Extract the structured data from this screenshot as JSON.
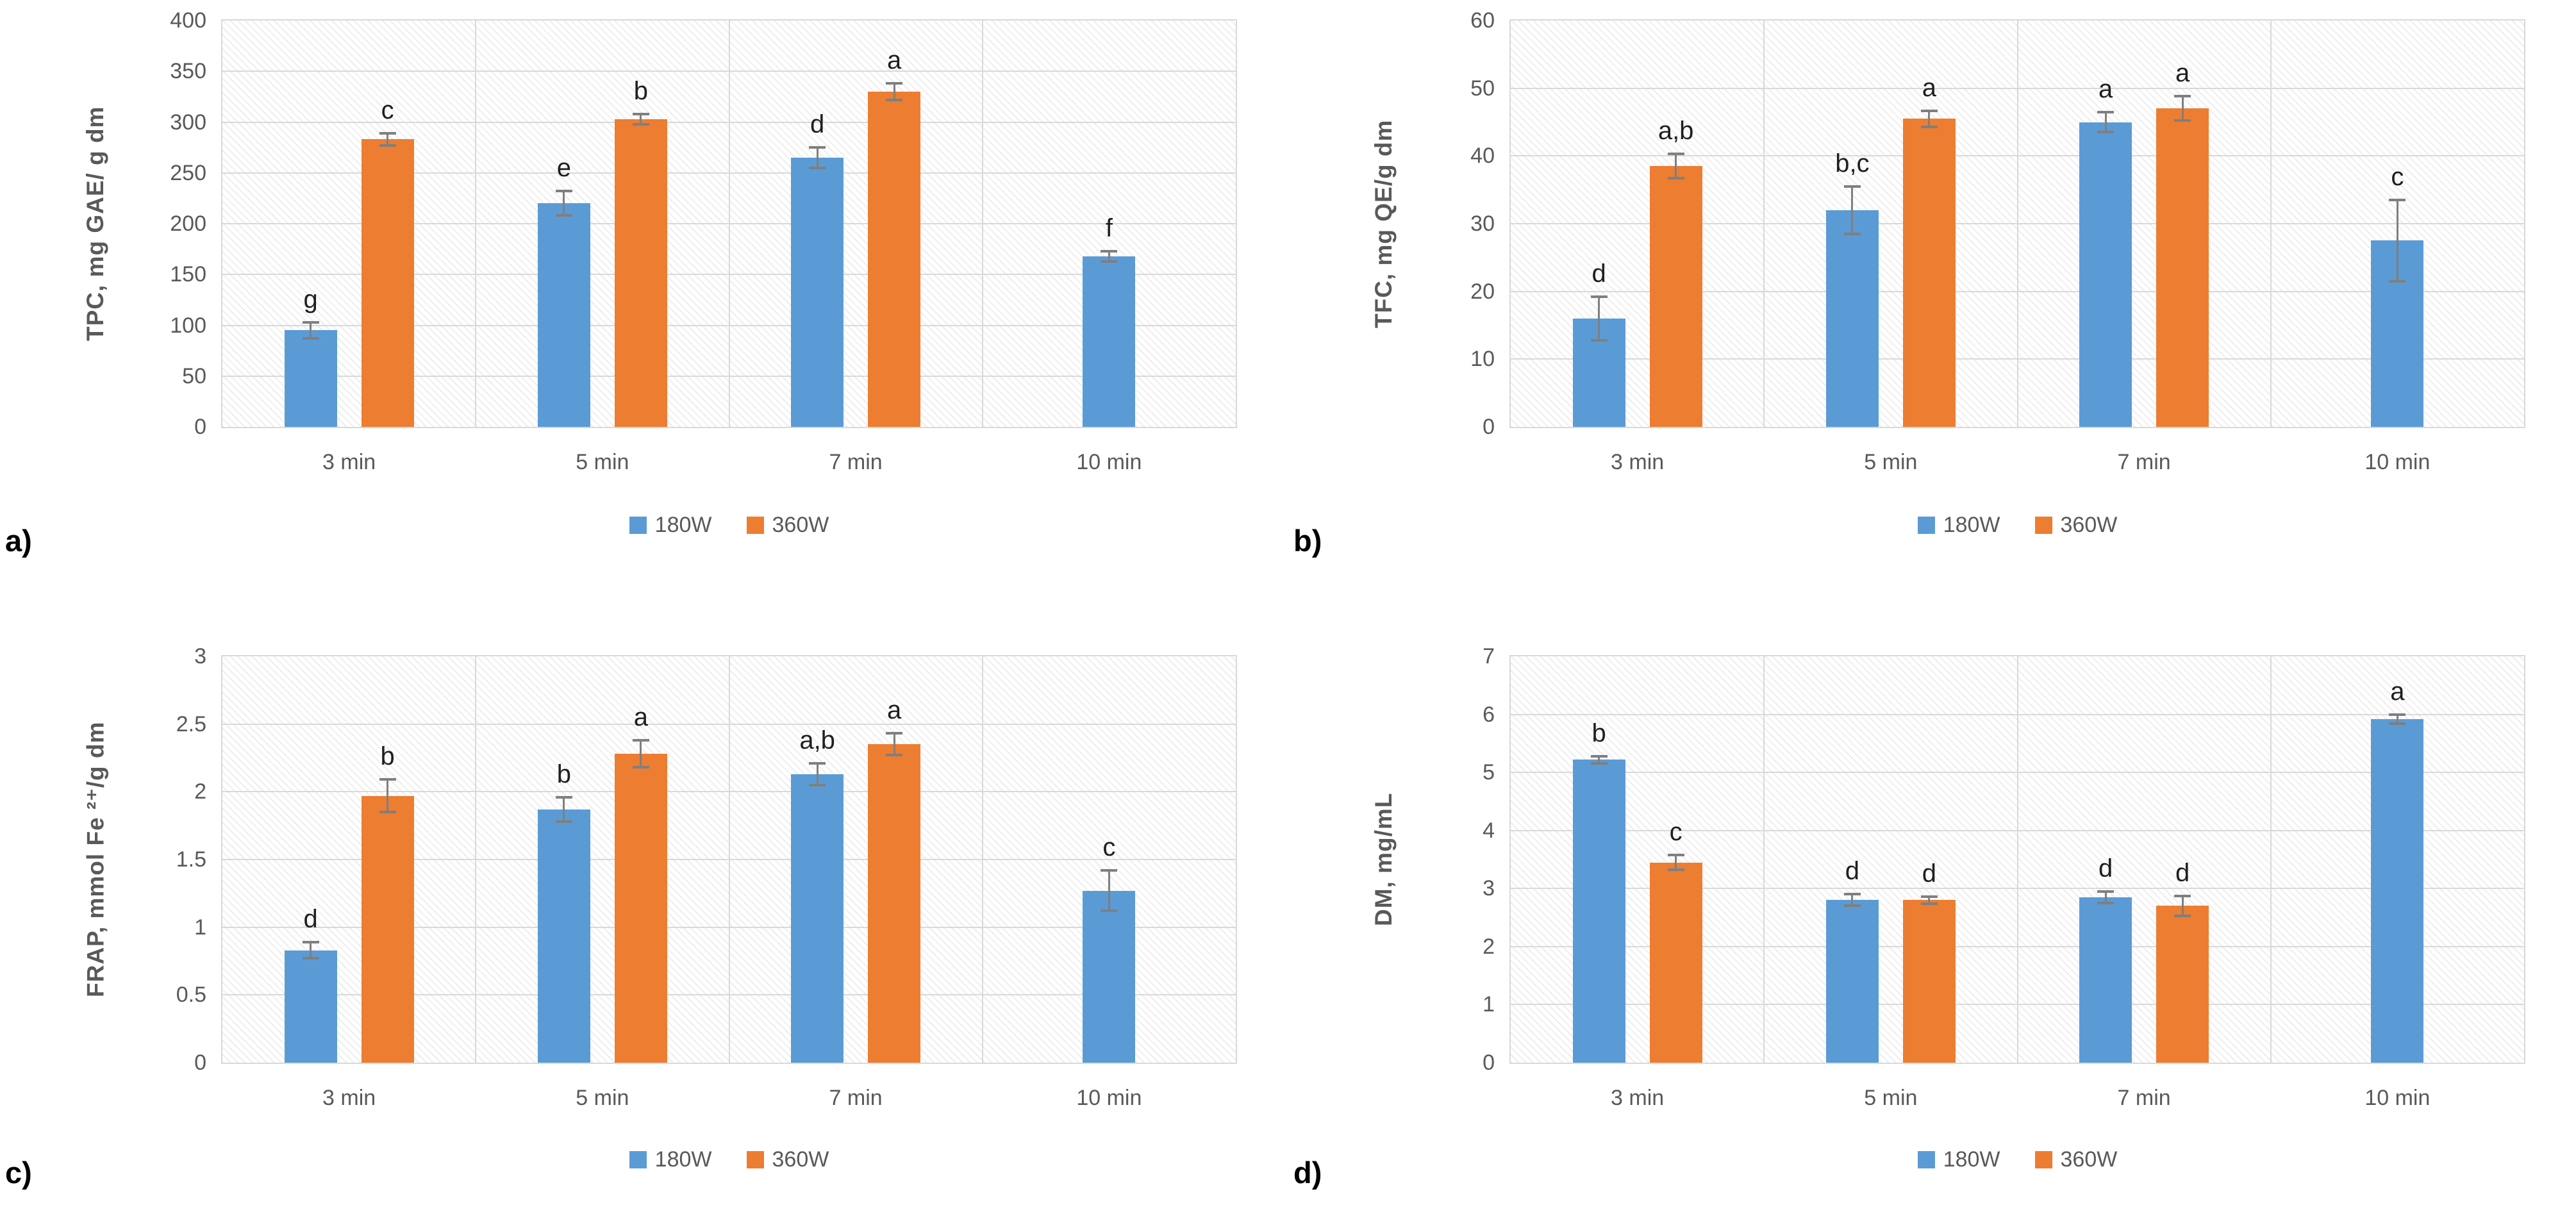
{
  "legend": {
    "items": [
      {
        "label": "180W",
        "color": "#5B9BD5"
      },
      {
        "label": "360W",
        "color": "#ED7D31"
      }
    ]
  },
  "styles": {
    "error_bar_color": "#7f7f7f",
    "gridline_color": "#d9d9d9",
    "axis_text_color": "#595959",
    "bar_blue": "#5B9BD5",
    "bar_orange": "#ED7D31"
  },
  "chart_data": [
    {
      "type": "bar",
      "panel_label": "a)",
      "ylabel": "TPC, mg GAE/ g dm",
      "ylim": [
        0,
        400
      ],
      "ystep": 50,
      "grid": true,
      "legend_position": "bottom",
      "categories": [
        "3 min",
        "5 min",
        "7 min",
        "10 min"
      ],
      "series": [
        "180W",
        "360W"
      ],
      "groups": [
        {
          "category": "3 min",
          "bars": [
            {
              "series": "180W",
              "value": 95,
              "error": 8,
              "letter": "g"
            },
            {
              "series": "360W",
              "value": 283,
              "error": 6,
              "letter": "c"
            }
          ]
        },
        {
          "category": "5 min",
          "bars": [
            {
              "series": "180W",
              "value": 220,
              "error": 12,
              "letter": "e"
            },
            {
              "series": "360W",
              "value": 303,
              "error": 5,
              "letter": "b"
            }
          ]
        },
        {
          "category": "7 min",
          "bars": [
            {
              "series": "180W",
              "value": 265,
              "error": 10,
              "letter": "d"
            },
            {
              "series": "360W",
              "value": 330,
              "error": 8,
              "letter": "a"
            }
          ]
        },
        {
          "category": "10 min",
          "bars": [
            {
              "series": "180W",
              "value": 168,
              "error": 5,
              "letter": "f"
            }
          ]
        }
      ]
    },
    {
      "type": "bar",
      "panel_label": "b)",
      "ylabel": "TFC, mg QE/g dm",
      "ylim": [
        0,
        60
      ],
      "ystep": 10,
      "grid": true,
      "legend_position": "bottom",
      "categories": [
        "3 min",
        "5 min",
        "7 min",
        "10 min"
      ],
      "series": [
        "180W",
        "360W"
      ],
      "groups": [
        {
          "category": "3 min",
          "bars": [
            {
              "series": "180W",
              "value": 16,
              "error": 3.2,
              "letter": "d"
            },
            {
              "series": "360W",
              "value": 38.5,
              "error": 1.8,
              "letter": "a,b"
            }
          ]
        },
        {
          "category": "5 min",
          "bars": [
            {
              "series": "180W",
              "value": 32,
              "error": 3.5,
              "letter": "b,c"
            },
            {
              "series": "360W",
              "value": 45.5,
              "error": 1.2,
              "letter": "a"
            }
          ]
        },
        {
          "category": "7 min",
          "bars": [
            {
              "series": "180W",
              "value": 45,
              "error": 1.5,
              "letter": "a"
            },
            {
              "series": "360W",
              "value": 47,
              "error": 1.8,
              "letter": "a"
            }
          ]
        },
        {
          "category": "10 min",
          "bars": [
            {
              "series": "180W",
              "value": 27.5,
              "error": 6,
              "letter": "c"
            }
          ]
        }
      ]
    },
    {
      "type": "bar",
      "panel_label": "c)",
      "ylabel": "FRAP, mmol Fe ²⁺/g dm",
      "ylim": [
        0,
        3
      ],
      "ystep": 0.5,
      "grid": true,
      "legend_position": "bottom",
      "categories": [
        "3 min",
        "5 min",
        "7 min",
        "10 min"
      ],
      "series": [
        "180W",
        "360W"
      ],
      "groups": [
        {
          "category": "3 min",
          "bars": [
            {
              "series": "180W",
              "value": 0.83,
              "error": 0.06,
              "letter": "d"
            },
            {
              "series": "360W",
              "value": 1.97,
              "error": 0.12,
              "letter": "b"
            }
          ]
        },
        {
          "category": "5 min",
          "bars": [
            {
              "series": "180W",
              "value": 1.87,
              "error": 0.09,
              "letter": "b"
            },
            {
              "series": "360W",
              "value": 2.28,
              "error": 0.1,
              "letter": "a"
            }
          ]
        },
        {
          "category": "7 min",
          "bars": [
            {
              "series": "180W",
              "value": 2.13,
              "error": 0.08,
              "letter": "a,b"
            },
            {
              "series": "360W",
              "value": 2.35,
              "error": 0.08,
              "letter": "a"
            }
          ]
        },
        {
          "category": "10 min",
          "bars": [
            {
              "series": "180W",
              "value": 1.27,
              "error": 0.15,
              "letter": "c"
            }
          ]
        }
      ]
    },
    {
      "type": "bar",
      "panel_label": "d)",
      "ylabel": "DM, mg/mL",
      "ylim": [
        0,
        7
      ],
      "ystep": 1,
      "grid": true,
      "legend_position": "bottom",
      "categories": [
        "3 min",
        "5 min",
        "7 min",
        "10 min"
      ],
      "series": [
        "180W",
        "360W"
      ],
      "groups": [
        {
          "category": "3 min",
          "bars": [
            {
              "series": "180W",
              "value": 5.22,
              "error": 0.06,
              "letter": "b"
            },
            {
              "series": "360W",
              "value": 3.45,
              "error": 0.13,
              "letter": "c"
            }
          ]
        },
        {
          "category": "5 min",
          "bars": [
            {
              "series": "180W",
              "value": 2.8,
              "error": 0.1,
              "letter": "d"
            },
            {
              "series": "360W",
              "value": 2.8,
              "error": 0.06,
              "letter": "d"
            }
          ]
        },
        {
          "category": "7 min",
          "bars": [
            {
              "series": "180W",
              "value": 2.85,
              "error": 0.1,
              "letter": "d"
            },
            {
              "series": "360W",
              "value": 2.7,
              "error": 0.17,
              "letter": "d"
            }
          ]
        },
        {
          "category": "10 min",
          "bars": [
            {
              "series": "180W",
              "value": 5.92,
              "error": 0.08,
              "letter": "a"
            }
          ]
        }
      ]
    }
  ]
}
